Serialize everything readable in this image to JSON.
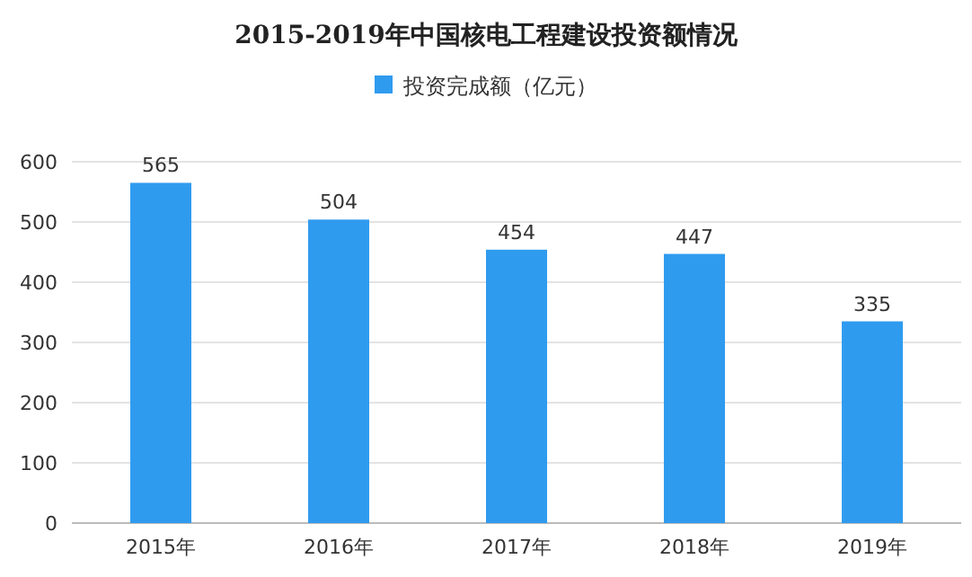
{
  "chart_data": {
    "type": "bar",
    "title": "2015-2019年中国核电工程建设投资额情况",
    "categories": [
      "2015年",
      "2016年",
      "2017年",
      "2018年",
      "2019年"
    ],
    "series": [
      {
        "name": "投资完成额（亿元）",
        "color": "#2f9bef",
        "values": [
          565,
          504,
          454,
          447,
          335
        ]
      }
    ],
    "ylim": [
      0,
      600
    ],
    "yticks": [
      0,
      100,
      200,
      300,
      400,
      500,
      600
    ],
    "grid": "y",
    "legend": "top",
    "data_labels": true
  }
}
